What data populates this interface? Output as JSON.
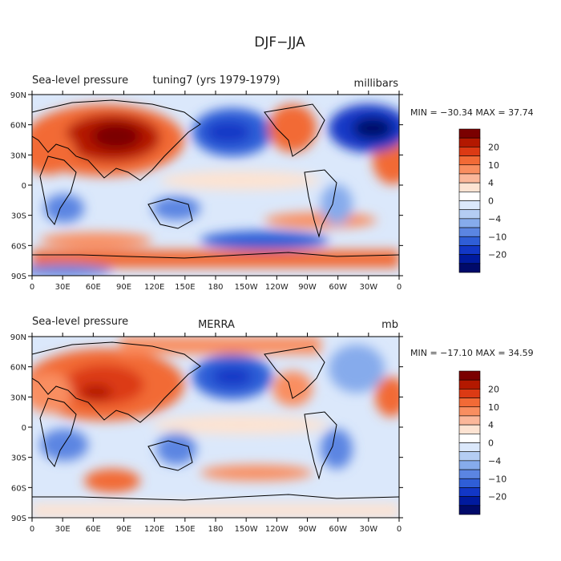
{
  "title": "DJF−JJA",
  "panels": [
    {
      "id": "top",
      "left_label": "Sea-level pressure",
      "center_label": "tuning7 (yrs 1979-1979)",
      "units": "millibars",
      "stats": "MIN = −30.34  MAX =  37.74",
      "min": -30.34,
      "max": 37.74
    },
    {
      "id": "bottom",
      "left_label": "Sea-level pressure",
      "center_label": "MERRA",
      "units": "mb",
      "stats": "MIN = −17.10  MAX =  34.59",
      "min": -17.1,
      "max": 34.59
    }
  ],
  "lat_ticks": [
    "90N",
    "60N",
    "30N",
    "0",
    "30S",
    "60S",
    "90S"
  ],
  "lon_ticks": [
    "0",
    "30E",
    "60E",
    "90E",
    "120E",
    "150E",
    "180",
    "150W",
    "120W",
    "90W",
    "60W",
    "30W",
    "0"
  ],
  "colorbar_labels": [
    "20",
    "10",
    "4",
    "0",
    "−4",
    "−10",
    "−20"
  ],
  "colorbar_colors": [
    "#7a0000",
    "#b31800",
    "#dc3a14",
    "#f26a36",
    "#f98e60",
    "#fbb79a",
    "#fde3d2",
    "#ffffff",
    "#dbe8fb",
    "#b4cdf3",
    "#86abec",
    "#5b85e2",
    "#2f5ed7",
    "#1237c6",
    "#001a9e",
    "#000a6a"
  ]
}
